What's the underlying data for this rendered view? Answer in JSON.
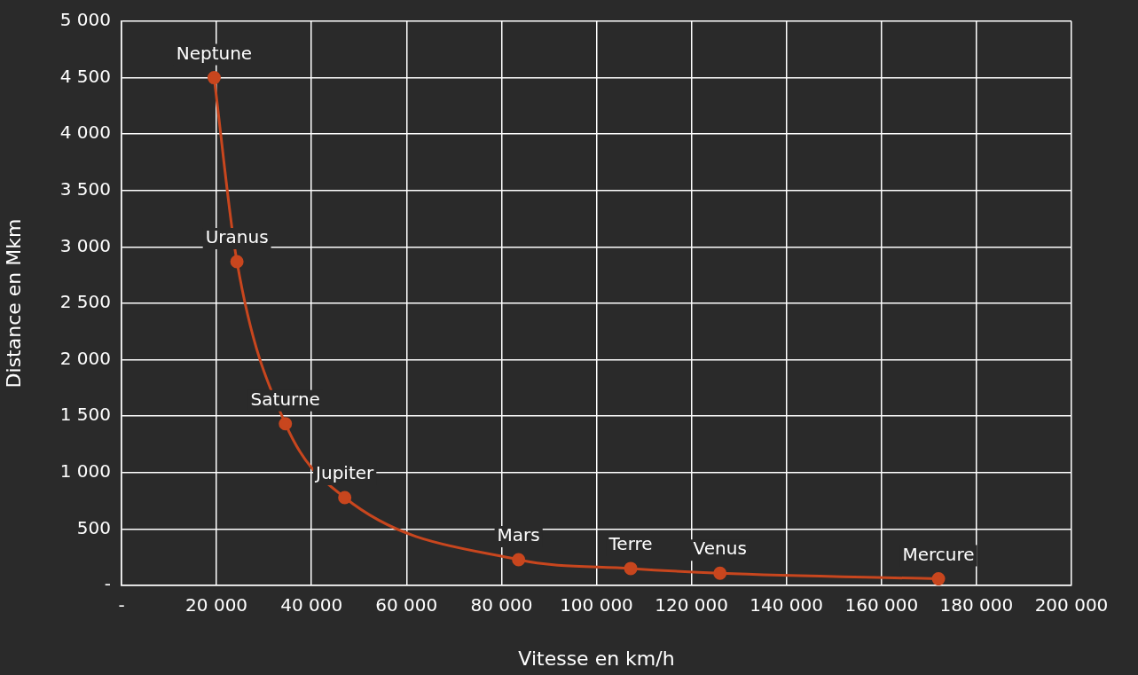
{
  "chart_data": {
    "type": "line",
    "xlabel": "Vitesse en km/h",
    "ylabel": "Distance en Mkm",
    "x": [
      19500,
      24300,
      34500,
      47000,
      83600,
      107200,
      126000,
      172000
    ],
    "values": [
      4500,
      2870,
      1433,
      778,
      228,
      150,
      108,
      58
    ],
    "color": "#c8461e",
    "marker": "circle",
    "line_style": "solid",
    "grid": true,
    "legend": false,
    "xlim": [
      0,
      200000
    ],
    "ylim": [
      0,
      5000
    ],
    "xticks": [
      {
        "value": 0,
        "label": "-"
      },
      {
        "value": 20000,
        "label": "20 000"
      },
      {
        "value": 40000,
        "label": "40 000"
      },
      {
        "value": 60000,
        "label": "60 000"
      },
      {
        "value": 80000,
        "label": "80 000"
      },
      {
        "value": 100000,
        "label": "100 000"
      },
      {
        "value": 120000,
        "label": "120 000"
      },
      {
        "value": 140000,
        "label": "140 000"
      },
      {
        "value": 160000,
        "label": "160 000"
      },
      {
        "value": 180000,
        "label": "180 000"
      },
      {
        "value": 200000,
        "label": "200 000"
      }
    ],
    "yticks": [
      {
        "value": 0,
        "label": "-"
      },
      500,
      {
        "value": 1000,
        "label": "1 000"
      },
      {
        "value": 1500,
        "label": "1 500"
      },
      {
        "value": 2000,
        "label": "2 000"
      },
      {
        "value": 2500,
        "label": "2 500"
      },
      {
        "value": 3000,
        "label": "3 000"
      },
      {
        "value": 3500,
        "label": "3 500"
      },
      {
        "value": 4000,
        "label": "4 000"
      },
      {
        "value": 4500,
        "label": "4 500"
      },
      {
        "value": 5000,
        "label": "5 000"
      }
    ],
    "annotations": [
      {
        "text": "Neptune",
        "x": 19500,
        "y": 4500
      },
      {
        "text": "Uranus",
        "x": 24300,
        "y": 2870
      },
      {
        "text": "Saturne",
        "x": 34500,
        "y": 1433
      },
      {
        "text": "Jupiter",
        "x": 47000,
        "y": 778
      },
      {
        "text": "Mars",
        "x": 83600,
        "y": 228
      },
      {
        "text": "Terre",
        "x": 107200,
        "y": 150
      },
      {
        "text": "Venus",
        "x": 126000,
        "y": 108
      },
      {
        "text": "Mercure",
        "x": 172000,
        "y": 58
      }
    ]
  }
}
